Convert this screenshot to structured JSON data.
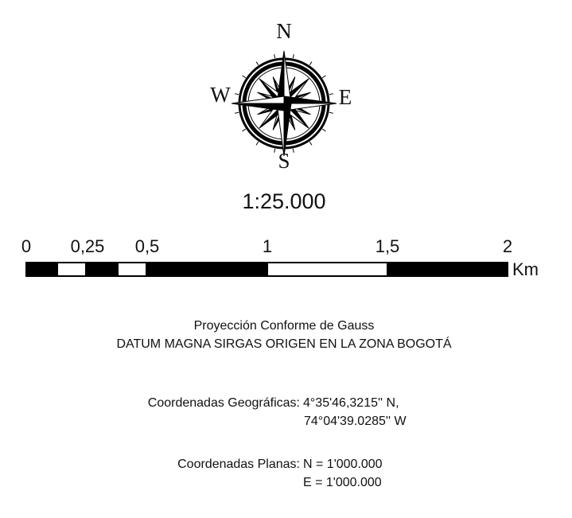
{
  "compass": {
    "north": "N",
    "south": "S",
    "west": "W",
    "east": "E"
  },
  "scale": {
    "ratio": "1:25.000",
    "labels": [
      "0",
      "0,25",
      "0,5",
      "1",
      "1,5",
      "2"
    ],
    "unit": "Km"
  },
  "projection": {
    "line1": "Proyección Conforme de Gauss",
    "line2": "DATUM MAGNA SIRGAS ORIGEN EN LA ZONA BOGOTÁ"
  },
  "coordinates": {
    "geographic": {
      "label": "Coordenadas Geográficas:",
      "lat": "4°35'46,3215'' N,",
      "lon": "74°04'39.0285'' W"
    },
    "plane": {
      "label": "Coordenadas Planas:",
      "north": "N = 1'000.000",
      "east": "E = 1'000.000"
    }
  }
}
